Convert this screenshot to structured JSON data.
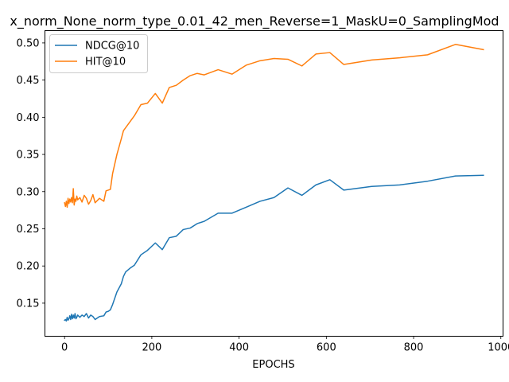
{
  "chart_data": {
    "type": "line",
    "title": "x_norm_None_norm_type_0.01_42_men_Reverse=1_MaskU=0_SamplingMod",
    "xlabel": "EPOCHS",
    "ylabel": "",
    "xlim": [
      -45,
      1005
    ],
    "ylim": [
      0.1055,
      0.5165
    ],
    "xticks": [
      0,
      200,
      400,
      600,
      800,
      1000
    ],
    "yticks": [
      0.15,
      0.2,
      0.25,
      0.3,
      0.35,
      0.4,
      0.45,
      0.5
    ],
    "ytick_labels": [
      "0.15",
      "0.20",
      "0.25",
      "0.30",
      "0.35",
      "0.40",
      "0.45",
      "0.50"
    ],
    "xtick_labels": [
      "0",
      "200",
      "400",
      "600",
      "800",
      "1000"
    ],
    "grid": false,
    "legend_position": "top-left",
    "series": [
      {
        "name": "NDCG@10",
        "color": "#1f77b4",
        "x": [
          0,
          2,
          4,
          6,
          8,
          10,
          12,
          14,
          16,
          18,
          20,
          22,
          24,
          26,
          28,
          30,
          35,
          40,
          45,
          50,
          55,
          60,
          65,
          70,
          80,
          90,
          95,
          100,
          105,
          110,
          120,
          130,
          135,
          140,
          150,
          160,
          175,
          190,
          208,
          224,
          240,
          256,
          272,
          288,
          304,
          320,
          352,
          384,
          416,
          448,
          480,
          512,
          544,
          576,
          608,
          640,
          704,
          768,
          832,
          896,
          960
        ],
        "y": [
          0.127,
          0.128,
          0.126,
          0.131,
          0.127,
          0.129,
          0.133,
          0.128,
          0.135,
          0.129,
          0.134,
          0.13,
          0.136,
          0.129,
          0.131,
          0.134,
          0.131,
          0.134,
          0.132,
          0.136,
          0.13,
          0.134,
          0.132,
          0.128,
          0.132,
          0.133,
          0.138,
          0.139,
          0.141,
          0.148,
          0.165,
          0.176,
          0.186,
          0.192,
          0.197,
          0.201,
          0.215,
          0.221,
          0.231,
          0.222,
          0.238,
          0.24,
          0.249,
          0.251,
          0.257,
          0.26,
          0.271,
          0.271,
          0.279,
          0.287,
          0.292,
          0.305,
          0.295,
          0.309,
          0.316,
          0.302,
          0.307,
          0.309,
          0.314,
          0.321,
          0.322
        ]
      },
      {
        "name": "HIT@10",
        "color": "#ff7f0e",
        "x": [
          0,
          2,
          4,
          6,
          8,
          10,
          12,
          14,
          16,
          18,
          20,
          22,
          24,
          26,
          28,
          30,
          35,
          40,
          45,
          50,
          55,
          60,
          65,
          70,
          80,
          90,
          95,
          100,
          105,
          110,
          120,
          130,
          135,
          140,
          150,
          160,
          175,
          190,
          208,
          224,
          240,
          256,
          272,
          288,
          304,
          320,
          352,
          384,
          416,
          448,
          480,
          512,
          544,
          576,
          608,
          640,
          704,
          768,
          832,
          896,
          960
        ],
        "y": [
          0.285,
          0.28,
          0.287,
          0.279,
          0.291,
          0.284,
          0.29,
          0.286,
          0.292,
          0.285,
          0.304,
          0.282,
          0.29,
          0.287,
          0.294,
          0.289,
          0.292,
          0.286,
          0.295,
          0.291,
          0.283,
          0.288,
          0.296,
          0.285,
          0.291,
          0.287,
          0.301,
          0.302,
          0.303,
          0.324,
          0.35,
          0.371,
          0.382,
          0.386,
          0.394,
          0.402,
          0.417,
          0.419,
          0.432,
          0.419,
          0.44,
          0.443,
          0.45,
          0.456,
          0.459,
          0.457,
          0.464,
          0.458,
          0.47,
          0.476,
          0.479,
          0.478,
          0.469,
          0.485,
          0.487,
          0.471,
          0.477,
          0.48,
          0.484,
          0.498,
          0.491
        ]
      }
    ]
  }
}
